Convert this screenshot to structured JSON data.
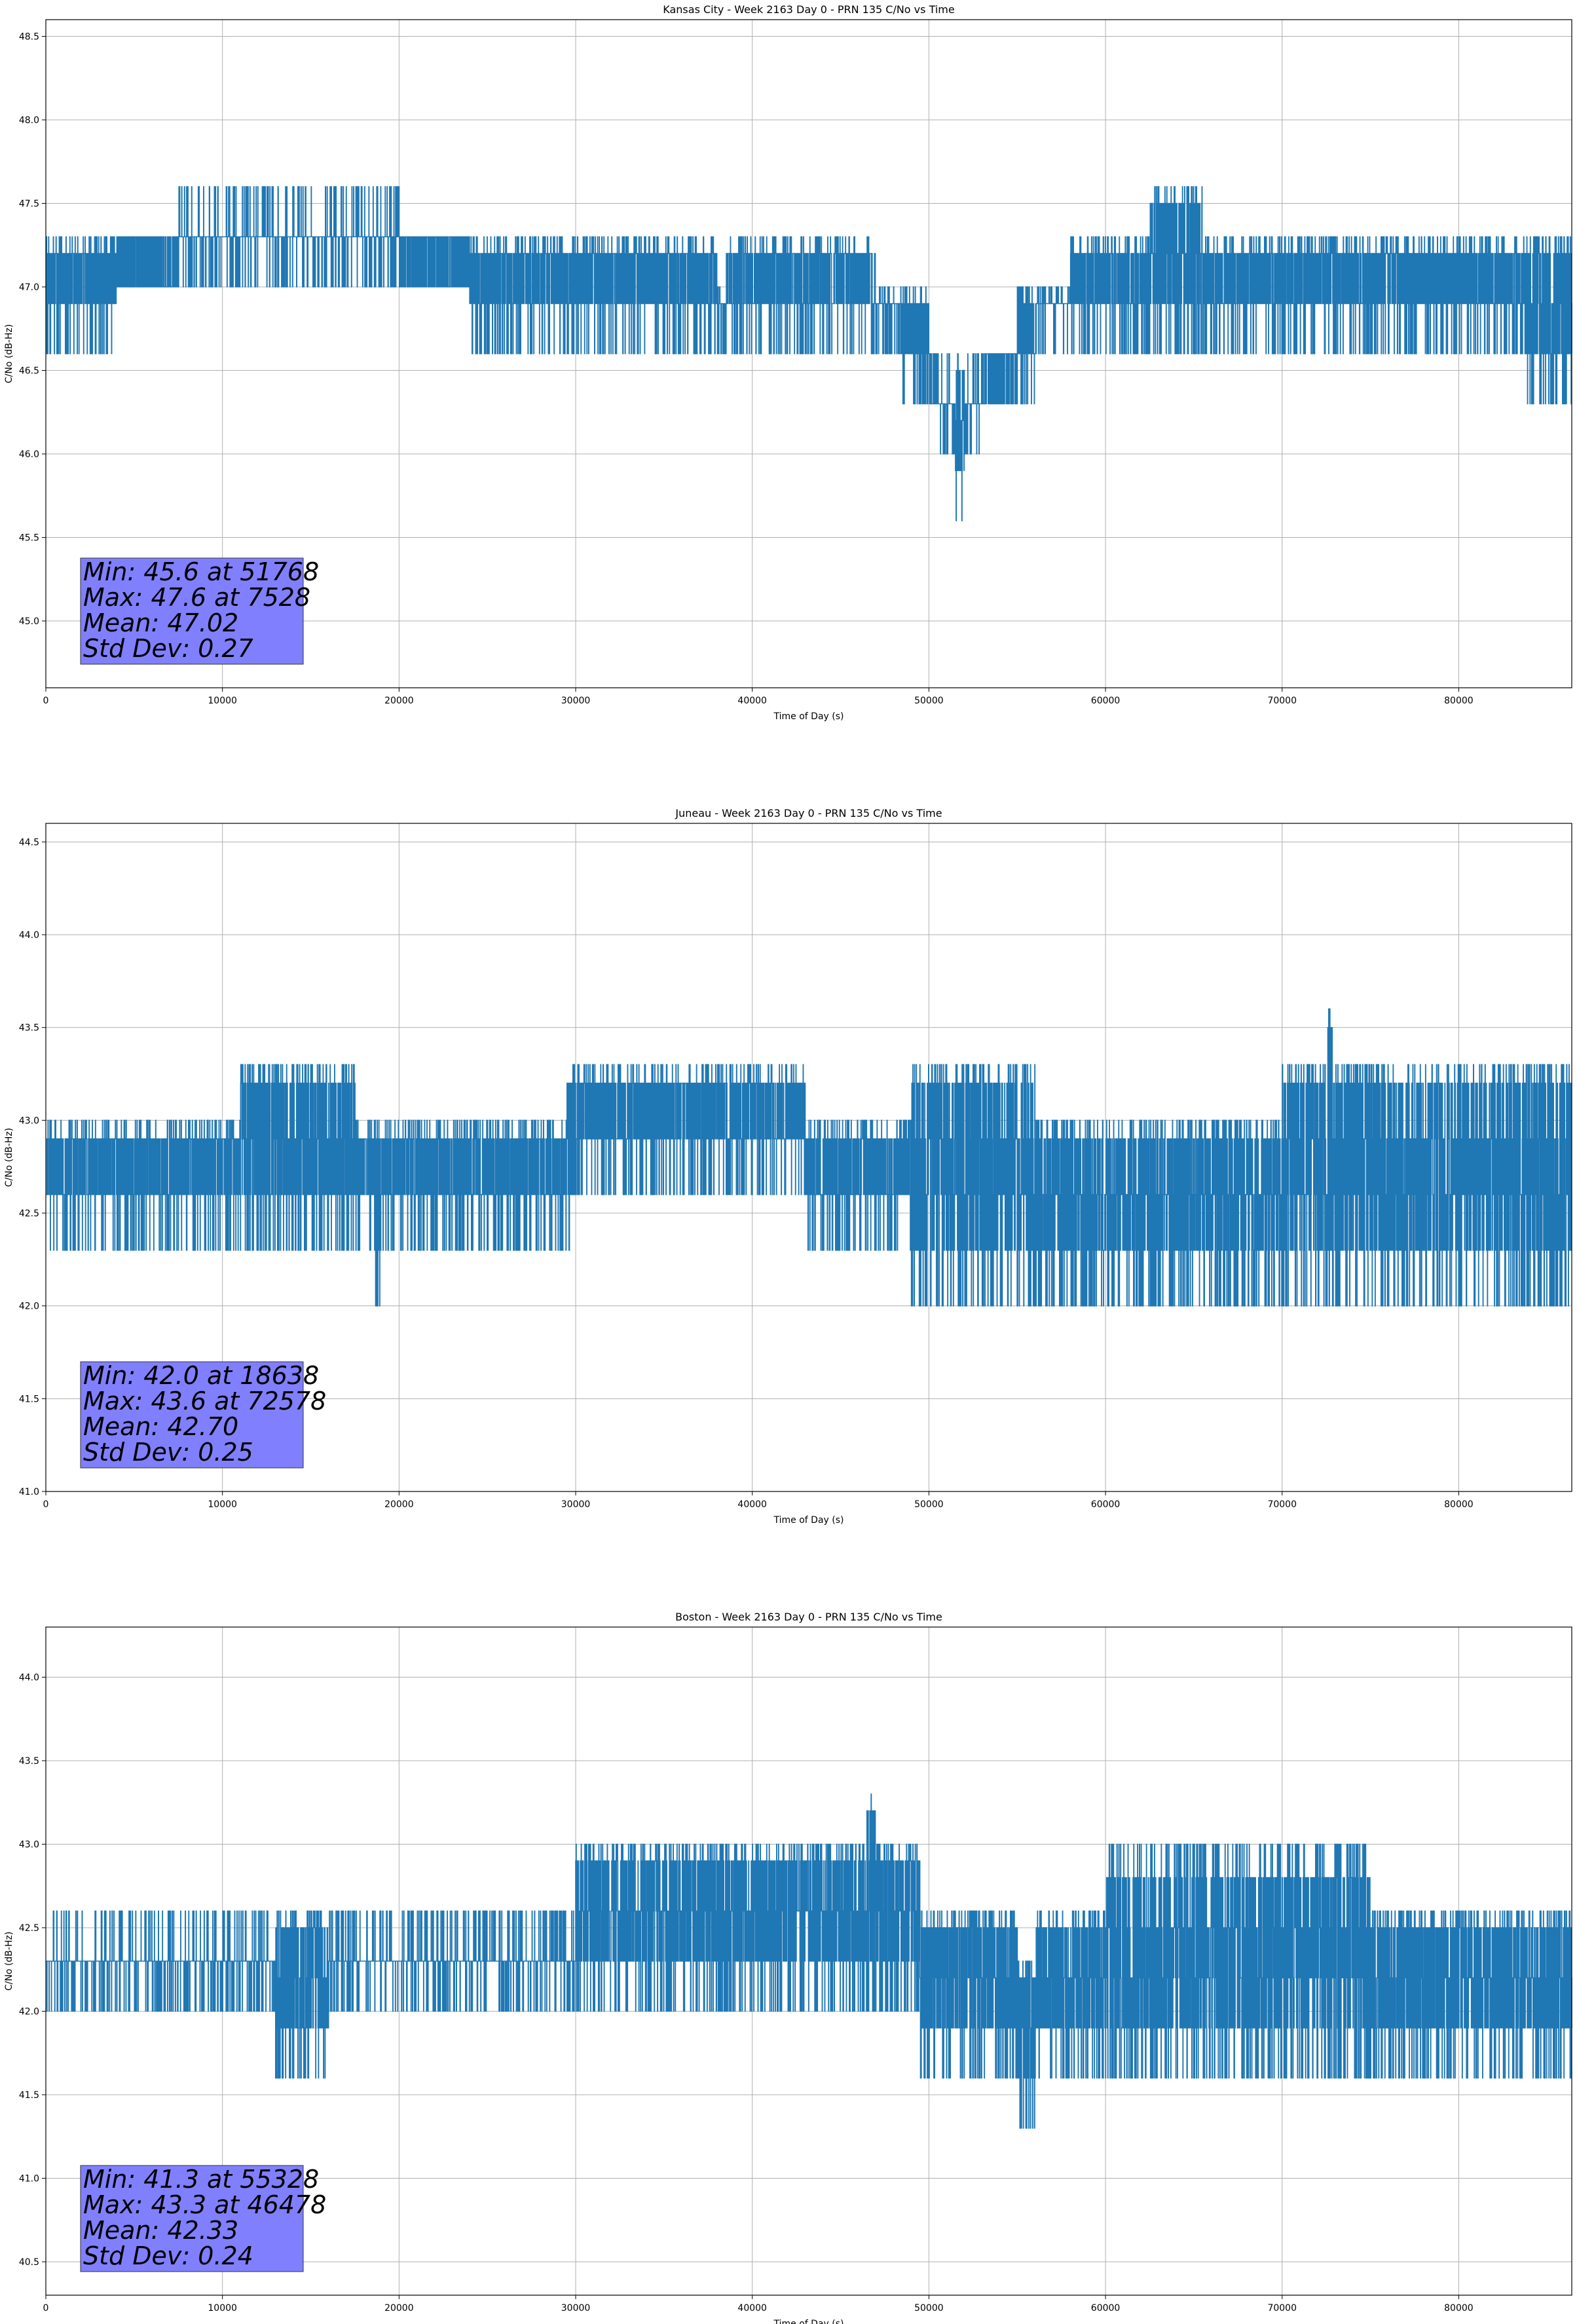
{
  "chart_data": [
    {
      "type": "line",
      "title": "Kansas City - Week 2163 Day 0 - PRN 135 C/No vs Time",
      "xlabel": "Time of Day (s)",
      "ylabel": "C/No (dB-Hz)",
      "xlim": [
        0,
        86400
      ],
      "ylim": [
        44.6,
        48.6
      ],
      "xticks": [
        0,
        10000,
        20000,
        30000,
        40000,
        50000,
        60000,
        70000,
        80000
      ],
      "yticks": [
        45.0,
        45.5,
        46.0,
        46.5,
        47.0,
        47.5,
        48.0,
        48.5
      ],
      "grid": true,
      "color": "#1f77b4",
      "stats": {
        "min_line": "Min: 45.6 at 51768",
        "max_line": "Max: 47.6 at 7528",
        "mean_line": "Mean: 47.02",
        "std_line": "Std Dev: 0.27"
      },
      "band": [
        {
          "x": 0,
          "low": 46.6,
          "high": 47.3
        },
        {
          "x": 4000,
          "low": 46.6,
          "high": 47.3
        },
        {
          "x": 4001,
          "low": 47.0,
          "high": 47.3
        },
        {
          "x": 7500,
          "low": 47.0,
          "high": 47.6
        },
        {
          "x": 20000,
          "low": 47.0,
          "high": 47.6
        },
        {
          "x": 20001,
          "low": 47.0,
          "high": 47.3
        },
        {
          "x": 24000,
          "low": 46.6,
          "high": 47.3
        },
        {
          "x": 38000,
          "low": 46.6,
          "high": 47.0
        },
        {
          "x": 38500,
          "low": 46.6,
          "high": 47.3
        },
        {
          "x": 47000,
          "low": 46.6,
          "high": 47.0
        },
        {
          "x": 48500,
          "low": 46.3,
          "high": 47.0
        },
        {
          "x": 50000,
          "low": 46.3,
          "high": 46.6
        },
        {
          "x": 50500,
          "low": 46.0,
          "high": 46.6
        },
        {
          "x": 51500,
          "low": 45.6,
          "high": 46.6
        },
        {
          "x": 52000,
          "low": 46.0,
          "high": 46.6
        },
        {
          "x": 53000,
          "low": 46.3,
          "high": 46.6
        },
        {
          "x": 55000,
          "low": 46.3,
          "high": 47.0
        },
        {
          "x": 56000,
          "low": 46.6,
          "high": 47.0
        },
        {
          "x": 58000,
          "low": 46.6,
          "high": 47.3
        },
        {
          "x": 62500,
          "low": 46.6,
          "high": 47.6
        },
        {
          "x": 65500,
          "low": 46.6,
          "high": 47.3
        },
        {
          "x": 80000,
          "low": 46.6,
          "high": 47.3
        },
        {
          "x": 83800,
          "low": 46.3,
          "high": 47.3
        },
        {
          "x": 86400,
          "low": 46.6,
          "high": 47.3
        }
      ]
    },
    {
      "type": "line",
      "title": "Juneau - Week 2163 Day 0 - PRN 135 C/No vs Time",
      "xlabel": "Time of Day (s)",
      "ylabel": "C/No (dB-Hz)",
      "xlim": [
        0,
        86400
      ],
      "ylim": [
        41.0,
        44.6
      ],
      "xticks": [
        0,
        10000,
        20000,
        30000,
        40000,
        50000,
        60000,
        70000,
        80000
      ],
      "yticks": [
        41.0,
        41.5,
        42.0,
        42.5,
        43.0,
        43.5,
        44.0,
        44.5
      ],
      "grid": true,
      "color": "#1f77b4",
      "stats": {
        "min_line": "Min: 42.0 at 18638",
        "max_line": "Max: 43.6 at 72578",
        "mean_line": "Mean: 42.70",
        "std_line": "Std Dev: 0.25"
      },
      "band": [
        {
          "x": 0,
          "low": 42.3,
          "high": 43.0
        },
        {
          "x": 11000,
          "low": 42.3,
          "high": 43.3
        },
        {
          "x": 17500,
          "low": 42.3,
          "high": 43.0
        },
        {
          "x": 18600,
          "low": 42.0,
          "high": 43.0
        },
        {
          "x": 19000,
          "low": 42.3,
          "high": 43.0
        },
        {
          "x": 29500,
          "low": 42.3,
          "high": 43.3
        },
        {
          "x": 30000,
          "low": 42.6,
          "high": 43.3
        },
        {
          "x": 43000,
          "low": 42.3,
          "high": 43.0
        },
        {
          "x": 49000,
          "low": 42.0,
          "high": 43.3
        },
        {
          "x": 56000,
          "low": 42.0,
          "high": 43.0
        },
        {
          "x": 70000,
          "low": 42.0,
          "high": 43.3
        },
        {
          "x": 72500,
          "low": 42.0,
          "high": 43.6
        },
        {
          "x": 73000,
          "low": 42.0,
          "high": 43.3
        },
        {
          "x": 80000,
          "low": 42.0,
          "high": 43.3
        },
        {
          "x": 86400,
          "low": 42.3,
          "high": 43.0
        }
      ]
    },
    {
      "type": "line",
      "title": "Boston - Week 2163 Day 0 - PRN 135 C/No vs Time",
      "xlabel": "Time of Day (s)",
      "ylabel": "C/No (dB-Hz)",
      "xlim": [
        0,
        86400
      ],
      "ylim": [
        40.3,
        44.3
      ],
      "xticks": [
        0,
        10000,
        20000,
        30000,
        40000,
        50000,
        60000,
        70000,
        80000
      ],
      "yticks": [
        40.5,
        41.0,
        41.5,
        42.0,
        42.5,
        43.0,
        43.5,
        44.0
      ],
      "grid": true,
      "color": "#1f77b4",
      "stats": {
        "min_line": "Min: 41.3 at 55328",
        "max_line": "Max: 43.3 at 46478",
        "mean_line": "Mean: 42.33",
        "std_line": "Std Dev: 0.24"
      },
      "band": [
        {
          "x": 0,
          "low": 42.0,
          "high": 42.6
        },
        {
          "x": 13000,
          "low": 41.6,
          "high": 42.6
        },
        {
          "x": 16000,
          "low": 42.0,
          "high": 42.6
        },
        {
          "x": 30000,
          "low": 42.0,
          "high": 43.0
        },
        {
          "x": 46400,
          "low": 42.0,
          "high": 43.3
        },
        {
          "x": 47000,
          "low": 42.0,
          "high": 43.0
        },
        {
          "x": 49500,
          "low": 41.6,
          "high": 42.6
        },
        {
          "x": 55000,
          "low": 41.3,
          "high": 42.3
        },
        {
          "x": 56000,
          "low": 41.6,
          "high": 42.6
        },
        {
          "x": 60000,
          "low": 41.6,
          "high": 43.0
        },
        {
          "x": 75000,
          "low": 41.6,
          "high": 42.6
        },
        {
          "x": 86400,
          "low": 41.6,
          "high": 42.3
        }
      ]
    }
  ]
}
